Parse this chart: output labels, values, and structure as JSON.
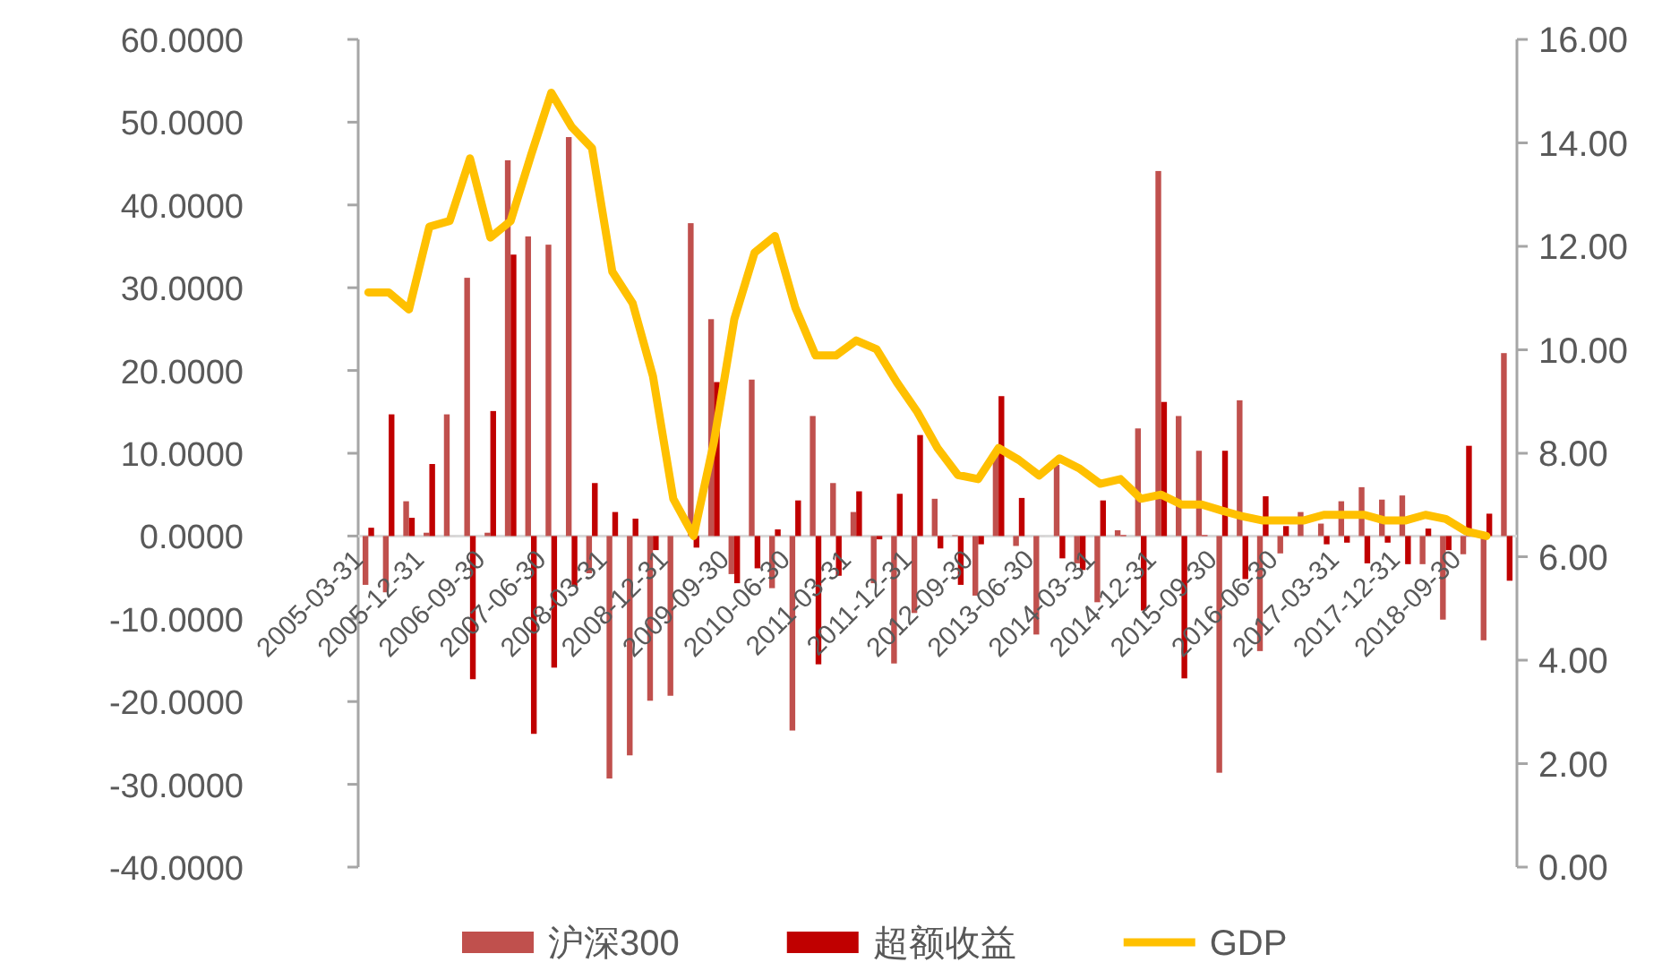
{
  "chart_data": {
    "type": "bar",
    "categories": [
      "2005-03-31",
      null,
      null,
      "2005-12-31",
      null,
      null,
      "2006-09-30",
      null,
      null,
      "2007-06-30",
      null,
      null,
      "2008-03-31",
      null,
      null,
      "2008-12-31",
      null,
      null,
      "2009-09-30",
      null,
      null,
      "2010-06-30",
      null,
      null,
      "2011-03-31",
      null,
      null,
      "2011-12-31",
      null,
      null,
      "2012-09-30",
      null,
      null,
      "2013-06-30",
      null,
      null,
      "2014-03-31",
      null,
      null,
      "2014-12-31",
      null,
      null,
      "2015-09-30",
      null,
      null,
      "2016-06-30",
      null,
      null,
      "2017-03-31",
      null,
      null,
      "2017-12-31",
      null,
      null,
      "2018-09-30",
      null,
      null
    ],
    "series": [
      {
        "name": "沪深300",
        "color": "#c0504d",
        "values": [
          -5.9,
          -6.8,
          4.2,
          0.4,
          14.7,
          31.2,
          0.4,
          45.4,
          36.2,
          35.2,
          48.2,
          -4.5,
          -29.3,
          -26.5,
          -19.9,
          -19.3,
          37.8,
          26.2,
          -4.6,
          18.9,
          -6.3,
          -23.5,
          14.5,
          6.4,
          2.9,
          -5.7,
          -15.4,
          -9.3,
          4.5,
          0.1,
          -7.2,
          10.2,
          -1.2,
          -11.9,
          8.6,
          -3.3,
          -8.0,
          0.7,
          13.0,
          44.1,
          14.5,
          10.3,
          -28.6,
          16.4,
          -13.9,
          -2.1,
          2.9,
          1.5,
          4.2,
          5.9,
          4.4,
          4.9,
          -3.4,
          -10.1,
          -2.2,
          -12.6,
          22.1
        ]
      },
      {
        "name": "超额收益",
        "color": "#c00000",
        "values": [
          1.0,
          14.7,
          2.2,
          8.7,
          0,
          -17.3,
          15.1,
          34.0,
          -23.9,
          -15.9,
          -6.1,
          6.4,
          2.9,
          2.1,
          -1.7,
          null,
          -1.4,
          18.6,
          -5.7,
          -3.9,
          0.8,
          4.3,
          -15.5,
          -4.8,
          5.4,
          -0.4,
          5.1,
          12.2,
          -1.5,
          -5.9,
          -1.0,
          16.9,
          4.6,
          0,
          -2.7,
          -4.1,
          4.3,
          0.1,
          -9.0,
          16.2,
          -17.2,
          0.1,
          10.3,
          -5.2,
          4.8,
          1.2,
          0,
          -1.0,
          -0.8,
          -3.3,
          -0.8,
          -3.4,
          0.9,
          -1.7,
          10.9,
          2.7,
          -5.4
        ]
      },
      {
        "name": "GDP",
        "color": "#ffc000",
        "type": "line",
        "axis": "y2",
        "values": [
          11.11,
          11.11,
          10.78,
          12.38,
          12.49,
          13.7,
          12.17,
          12.49,
          13.76,
          14.97,
          14.31,
          13.9,
          11.51,
          10.9,
          9.49,
          7.12,
          6.4,
          8.22,
          10.59,
          11.88,
          12.2,
          10.82,
          9.89,
          9.89,
          10.18,
          10.01,
          9.37,
          8.8,
          8.1,
          7.58,
          7.5,
          8.1,
          7.87,
          7.57,
          7.9,
          7.7,
          7.41,
          7.5,
          7.12,
          7.2,
          7.01,
          7.01,
          6.89,
          6.78,
          6.7,
          6.7,
          6.7,
          6.81,
          6.81,
          6.81,
          6.7,
          6.7,
          6.81,
          6.73,
          6.49,
          6.4,
          null
        ]
      }
    ],
    "ylim": [
      -40,
      60
    ],
    "yticks": [
      {
        "value": -40,
        "label": "-40.0000"
      },
      {
        "value": -30,
        "label": "-30.0000"
      },
      {
        "value": -20,
        "label": "-20.0000"
      },
      {
        "value": -10,
        "label": "-10.0000"
      },
      {
        "value": 0,
        "label": "0.0000"
      },
      {
        "value": 10,
        "label": "10.0000"
      },
      {
        "value": 20,
        "label": "20.0000"
      },
      {
        "value": 30,
        "label": "30.0000"
      },
      {
        "value": 40,
        "label": "40.0000"
      },
      {
        "value": 50,
        "label": "50.0000"
      },
      {
        "value": 60,
        "label": "60.0000"
      }
    ],
    "y2lim": [
      0,
      16
    ],
    "y2ticks": [
      {
        "value": 0,
        "label": "0.00"
      },
      {
        "value": 2,
        "label": "2.00"
      },
      {
        "value": 4,
        "label": "4.00"
      },
      {
        "value": 6,
        "label": "6.00"
      },
      {
        "value": 8,
        "label": "8.00"
      },
      {
        "value": 10,
        "label": "10.00"
      },
      {
        "value": 12,
        "label": "12.00"
      },
      {
        "value": 14,
        "label": "14.00"
      },
      {
        "value": 16,
        "label": "16.00"
      }
    ],
    "legend": "bottom",
    "marker": "none",
    "line_style": "solid"
  }
}
